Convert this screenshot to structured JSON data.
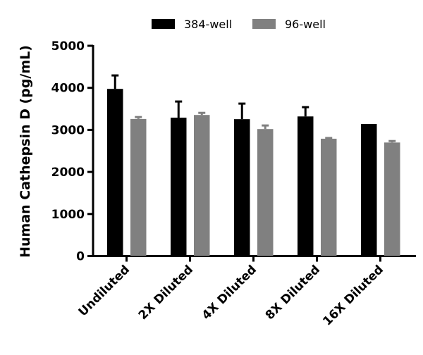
{
  "chart_data": {
    "type": "bar",
    "title": "",
    "xlabel": "",
    "ylabel": "Human Cathepsin D (pg/mL)",
    "ylim": [
      0,
      5000
    ],
    "yticks": [
      0,
      1000,
      2000,
      3000,
      4000,
      5000
    ],
    "categories": [
      "Undiluted",
      "2X Diluted",
      "4X Diluted",
      "8X Diluted",
      "16X Diluted"
    ],
    "legend_position": "top",
    "grid": false,
    "series": [
      {
        "name": "384-well",
        "color": "#000000",
        "values": [
          3975,
          3290,
          3255,
          3320,
          3140
        ],
        "error_plus": [
          320,
          385,
          370,
          220,
          0
        ]
      },
      {
        "name": "96-well",
        "color": "#808080",
        "values": [
          3260,
          3355,
          3020,
          2790,
          2700
        ],
        "error_plus": [
          45,
          50,
          85,
          17,
          35
        ]
      }
    ]
  }
}
